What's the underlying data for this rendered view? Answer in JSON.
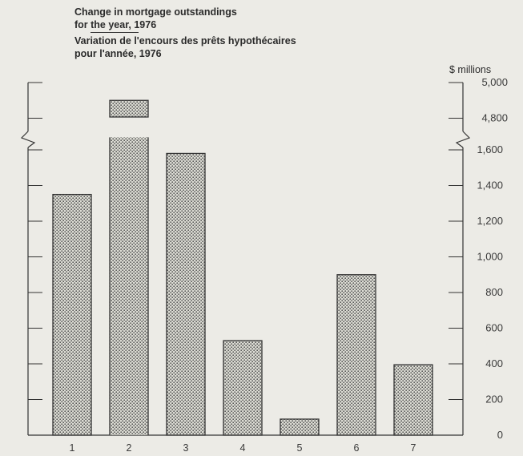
{
  "title_en": "Change in mortgage outstandings",
  "title_en_2": "for the year, 1976",
  "title_fr": "Variation de l'encours des prêts hypothécaires",
  "title_fr_2": "pour l'année, 1976",
  "unit_label": "$ millions",
  "colors": {
    "bar_fill": "#dcdcd4",
    "bar_dot": "#555555",
    "ink": "#333333",
    "background": "#ecebe6"
  },
  "chart_data": {
    "type": "bar",
    "categories": [
      "1",
      "2",
      "3",
      "4",
      "5",
      "6",
      "7"
    ],
    "values": [
      1350,
      4900,
      1580,
      530,
      90,
      900,
      395
    ],
    "y_axis_side": "right",
    "y_axis_break": {
      "lower_range": [
        0,
        1700
      ],
      "upper_range": [
        4700,
        5000
      ]
    },
    "y_ticks_lower": [
      0,
      200,
      400,
      600,
      800,
      1000,
      1200,
      1400,
      1600
    ],
    "y_ticks_upper": [
      4800,
      5000
    ],
    "y_tick_labels_lower": [
      "0",
      "200",
      "400",
      "600",
      "800",
      "1,000",
      "1,200",
      "1,400",
      "1,600"
    ],
    "y_tick_labels_upper": [
      "4,800",
      "5,000"
    ],
    "grid": false,
    "legend": "none"
  }
}
